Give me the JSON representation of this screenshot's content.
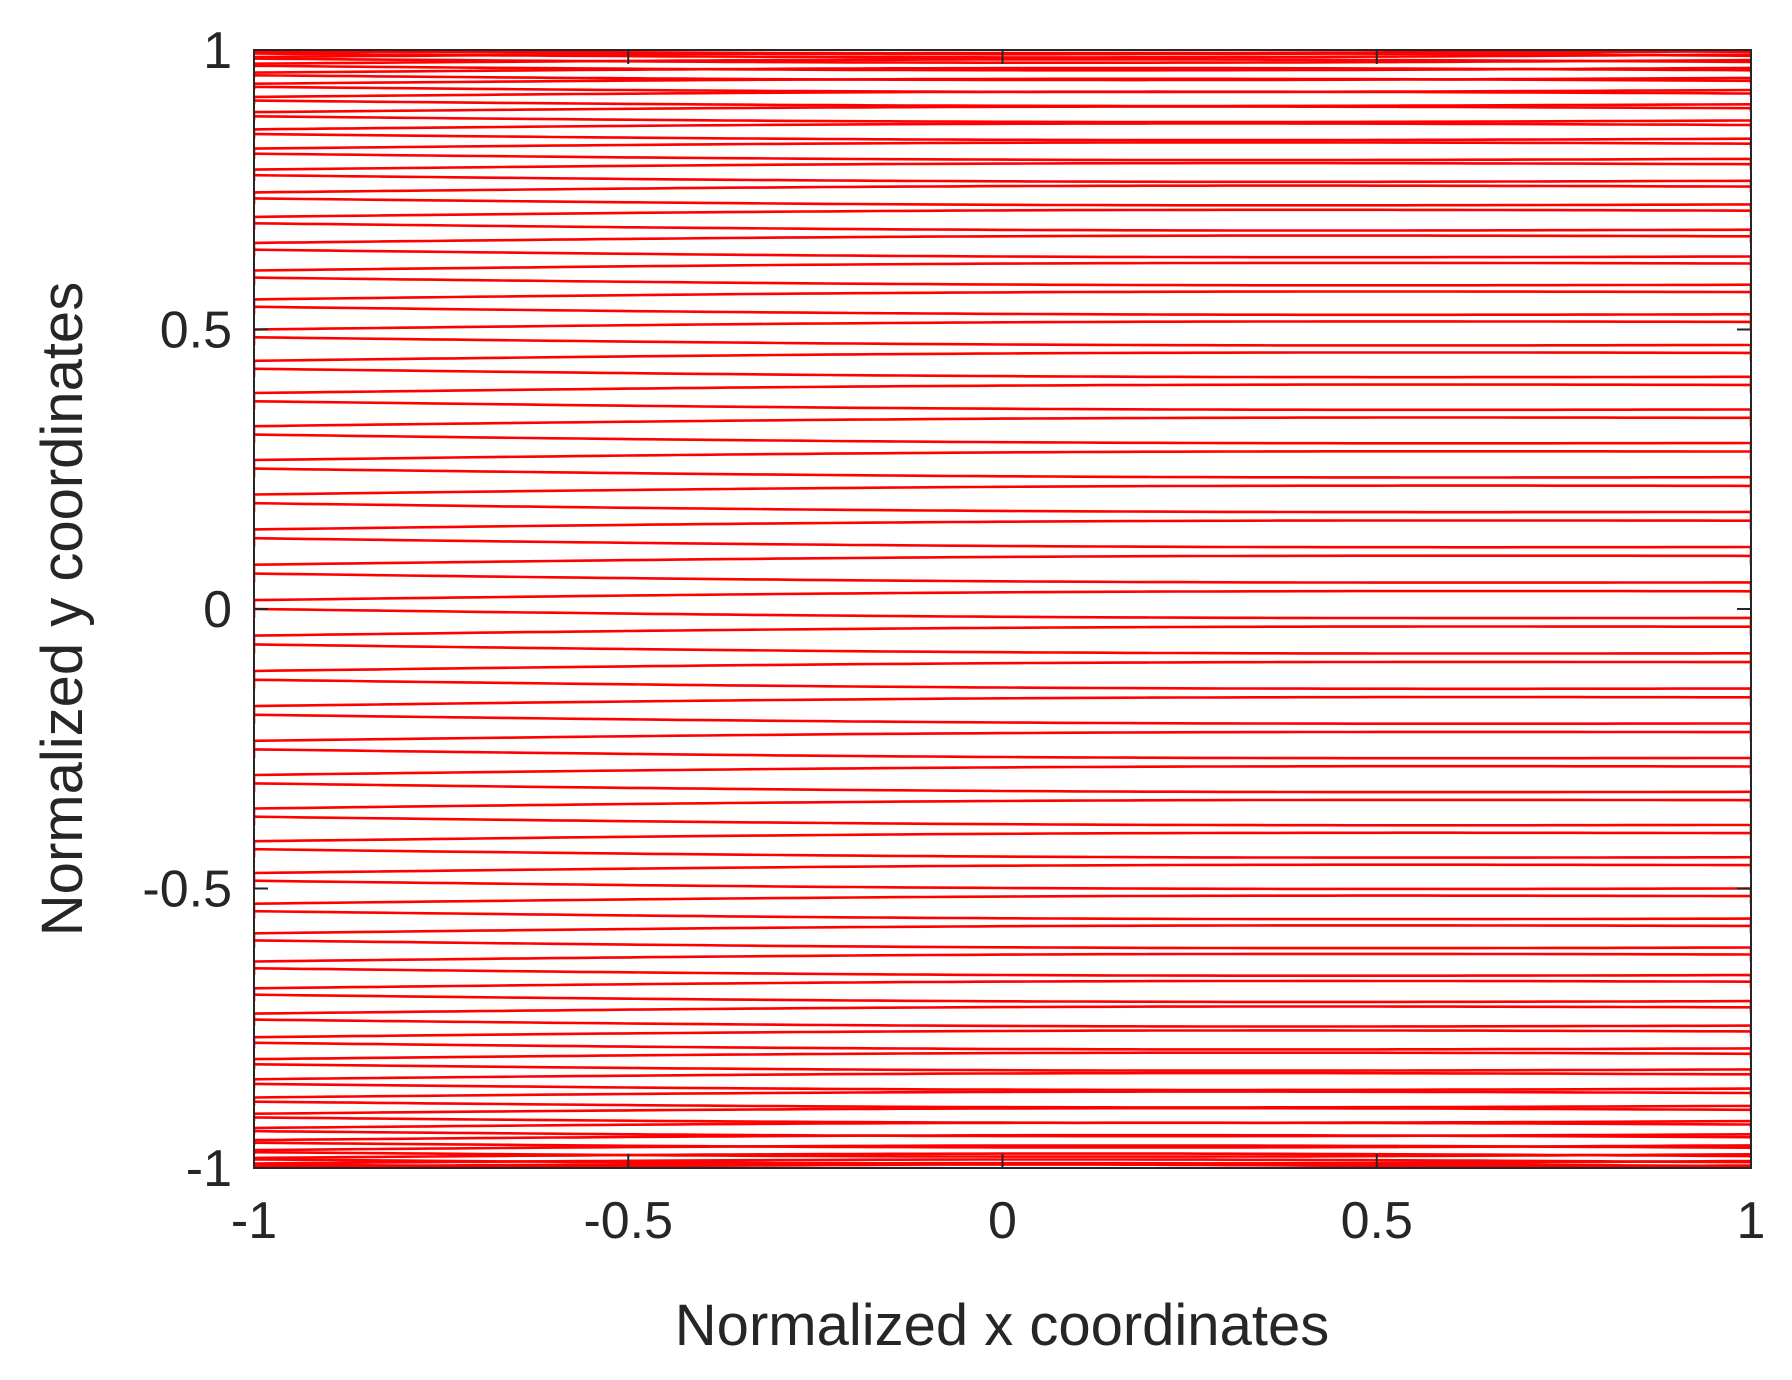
{
  "chart_data": {
    "type": "line",
    "title": "",
    "xlabel": "Normalized x coordinates",
    "ylabel": "Normalized y coordinates",
    "xlim": [
      -1,
      1
    ],
    "ylim": [
      -1,
      1
    ],
    "x_ticks": [
      -1,
      -0.5,
      0,
      0.5,
      1
    ],
    "x_tick_labels": [
      "-1",
      "-0.5",
      "0",
      "0.5",
      "1"
    ],
    "y_ticks": [
      -1,
      -0.5,
      0,
      0.5,
      1
    ],
    "y_tick_labels": [
      "-1",
      "-0.5",
      "0",
      "0.5",
      "1"
    ],
    "grid": false,
    "box": true,
    "line_color": "#ff0000",
    "pattern": "boustrophedon raster: horizontal sweeps from x=-1 to x=1 and back, with rows denser near y=-1 and y=1 (cosine-spaced) and slight lens-shaped spread between forward and return sweeps",
    "row_count": 100,
    "row_spacing": "cosine",
    "sweep_sag": 0.006
  }
}
